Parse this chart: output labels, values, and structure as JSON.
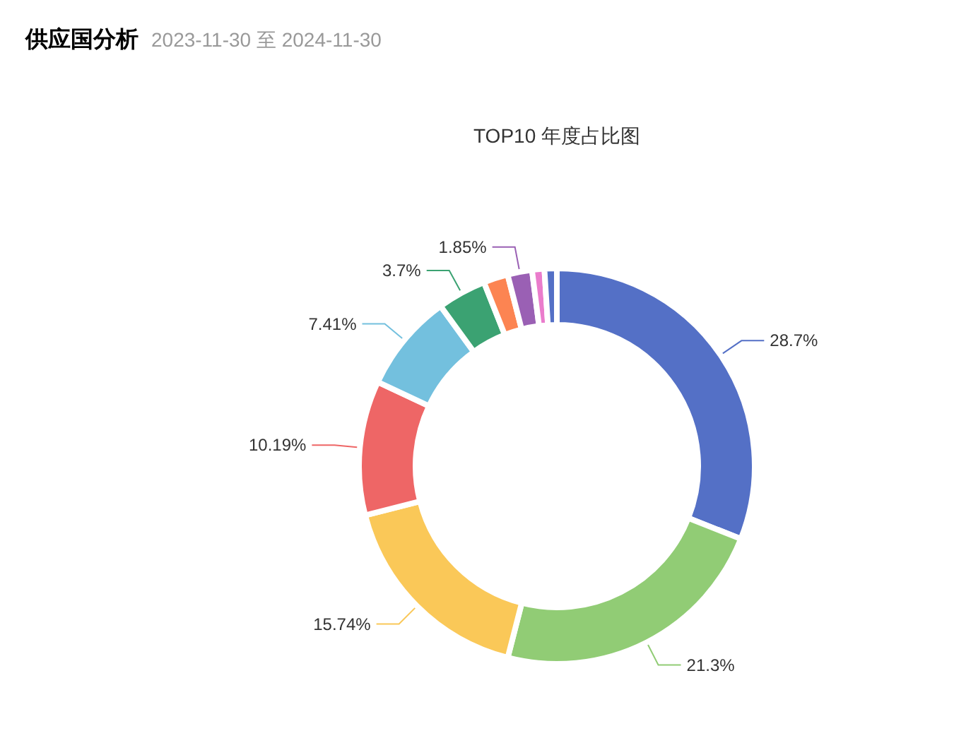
{
  "chart_data": {
    "type": "donut",
    "title": "TOP10 年度占比图",
    "annotations": [
      "供应国分析",
      "2023-11-30 至 2024-11-30"
    ],
    "categories": [
      null,
      null,
      null,
      null,
      null,
      null,
      null,
      null,
      null,
      null
    ],
    "values": [
      28.7,
      21.3,
      15.74,
      10.19,
      7.41,
      3.7,
      1.85,
      1.85,
      0.93,
      0.93
    ],
    "value_labels": [
      "28.7%",
      "21.3%",
      "15.74%",
      "10.19%",
      "7.41%",
      "3.7%",
      null,
      "1.85%",
      null,
      null
    ],
    "colors": [
      "#5470c6",
      "#91cc75",
      "#fac858",
      "#ee6666",
      "#73c0de",
      "#3ba272",
      "#fc8452",
      "#9a60b4",
      "#ea7ccc",
      "#5470c6"
    ]
  }
}
